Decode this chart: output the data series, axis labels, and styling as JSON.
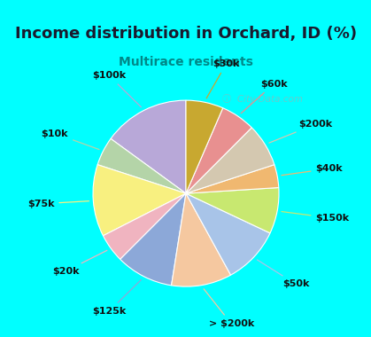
{
  "title": "Income distribution in Orchard, ID (%)",
  "subtitle": "Multirace residents",
  "title_color": "#1a1a2e",
  "subtitle_color": "#008888",
  "background_cyan": "#00FFFF",
  "background_chart": "#e0f5ea",
  "labels": [
    "$100k",
    "$10k",
    "$75k",
    "$20k",
    "$125k",
    "> $200k",
    "$50k",
    "$150k",
    "$40k",
    "$200k",
    "$60k",
    "$30k"
  ],
  "sizes": [
    15.0,
    5.0,
    12.5,
    5.0,
    10.0,
    10.5,
    10.0,
    8.0,
    4.0,
    7.5,
    6.0,
    6.5
  ],
  "colors": [
    "#b8a8d8",
    "#b4d4a8",
    "#f8f080",
    "#f0b4c0",
    "#8ca8d8",
    "#f5c8a0",
    "#a8c4e8",
    "#c8e870",
    "#f0b870",
    "#d4c8b0",
    "#e89090",
    "#c8a830"
  ],
  "startangle": 90,
  "wedge_edge_color": "#ffffff",
  "label_fontsize": 8,
  "title_fontsize": 13,
  "subtitle_fontsize": 10,
  "watermark": "City-Data.com"
}
